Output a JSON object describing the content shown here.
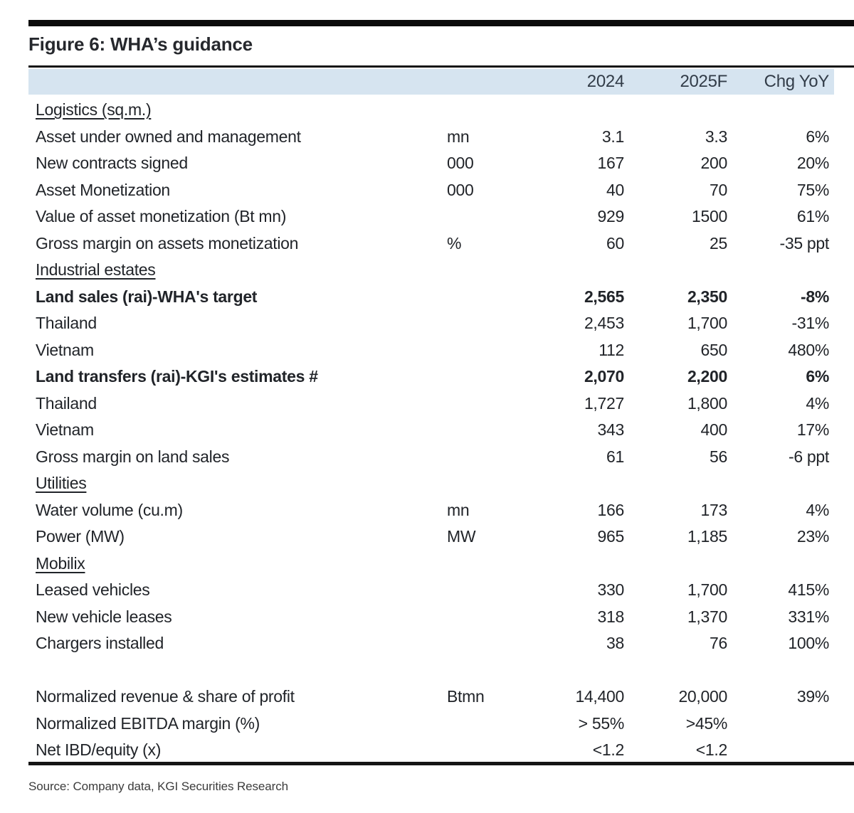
{
  "figure": {
    "title": "Figure 6: WHA’s guidance"
  },
  "table": {
    "columns": {
      "y2024": "2024",
      "y2025f": "2025F",
      "chg_yoy": "Chg YoY"
    },
    "rows": [
      {
        "label": "Logistics (sq.m.)",
        "style": "section"
      },
      {
        "label": "Asset under owned and management",
        "unit": "mn",
        "v2024": "3.1",
        "v2025f": "3.3",
        "chg_yoy": "6%"
      },
      {
        "label": "New contracts signed",
        "unit": "000",
        "v2024": "167",
        "v2025f": "200",
        "chg_yoy": "20%"
      },
      {
        "label": "Asset Monetization",
        "unit": "000",
        "v2024": "40",
        "v2025f": "70",
        "chg_yoy": "75%"
      },
      {
        "label": "Value of asset monetization (Bt mn)",
        "unit": "",
        "v2024": "929",
        "v2025f": "1500",
        "chg_yoy": "61%"
      },
      {
        "label": "Gross margin on assets monetization",
        "unit": "%",
        "v2024": "60",
        "v2025f": "25",
        "chg_yoy": "-35 ppt"
      },
      {
        "label": "Industrial estates",
        "style": "section"
      },
      {
        "label": "Land sales (rai)-WHA's target",
        "style": "bold",
        "v2024": "2,565",
        "v2025f": "2,350",
        "chg_yoy": "-8%"
      },
      {
        "label": "Thailand",
        "v2024": "2,453",
        "v2025f": "1,700",
        "chg_yoy": "-31%"
      },
      {
        "label": "Vietnam",
        "v2024": "112",
        "v2025f": "650",
        "chg_yoy": "480%"
      },
      {
        "label": "Land transfers (rai)-KGI's estimates #",
        "style": "bold",
        "v2024": "2,070",
        "v2025f": "2,200",
        "chg_yoy": "6%"
      },
      {
        "label": "Thailand",
        "v2024": "1,727",
        "v2025f": "1,800",
        "chg_yoy": "4%"
      },
      {
        "label": "Vietnam",
        "v2024": "343",
        "v2025f": "400",
        "chg_yoy": "17%"
      },
      {
        "label": "Gross margin on land sales",
        "v2024": "61",
        "v2025f": "56",
        "chg_yoy": "-6 ppt"
      },
      {
        "label": "Utilities",
        "style": "section"
      },
      {
        "label": "Water volume (cu.m)",
        "unit": "mn",
        "v2024": "166",
        "v2025f": "173",
        "chg_yoy": "4%"
      },
      {
        "label": "Power (MW)",
        "unit": "MW",
        "v2024": "965",
        "v2025f": "1,185",
        "chg_yoy": "23%"
      },
      {
        "label": "Mobilix",
        "style": "section"
      },
      {
        "label": "Leased vehicles",
        "v2024": "330",
        "v2025f": "1,700",
        "chg_yoy": "415%"
      },
      {
        "label": "New vehicle leases",
        "v2024": "318",
        "v2025f": "1,370",
        "chg_yoy": "331%"
      },
      {
        "label": "Chargers installed",
        "v2024": "38",
        "v2025f": "76",
        "chg_yoy": "100%"
      },
      {
        "style": "blank"
      },
      {
        "label": "Normalized revenue & share of profit",
        "unit": "Btmn",
        "v2024": "14,400",
        "v2025f": "20,000",
        "chg_yoy": "39%"
      },
      {
        "label": "Normalized EBITDA margin (%)",
        "v2024": "> 55%",
        "v2025f": ">45%",
        "chg_yoy": ""
      },
      {
        "label": "Net IBD/equity (x)",
        "v2024": "<1.2",
        "v2025f": "<1.2",
        "chg_yoy": ""
      }
    ]
  },
  "source": "Source: Company data, KGI Securities Research",
  "colors": {
    "header_band": "#d6e4f0",
    "rule": "#141414",
    "body_text": "#212429"
  }
}
